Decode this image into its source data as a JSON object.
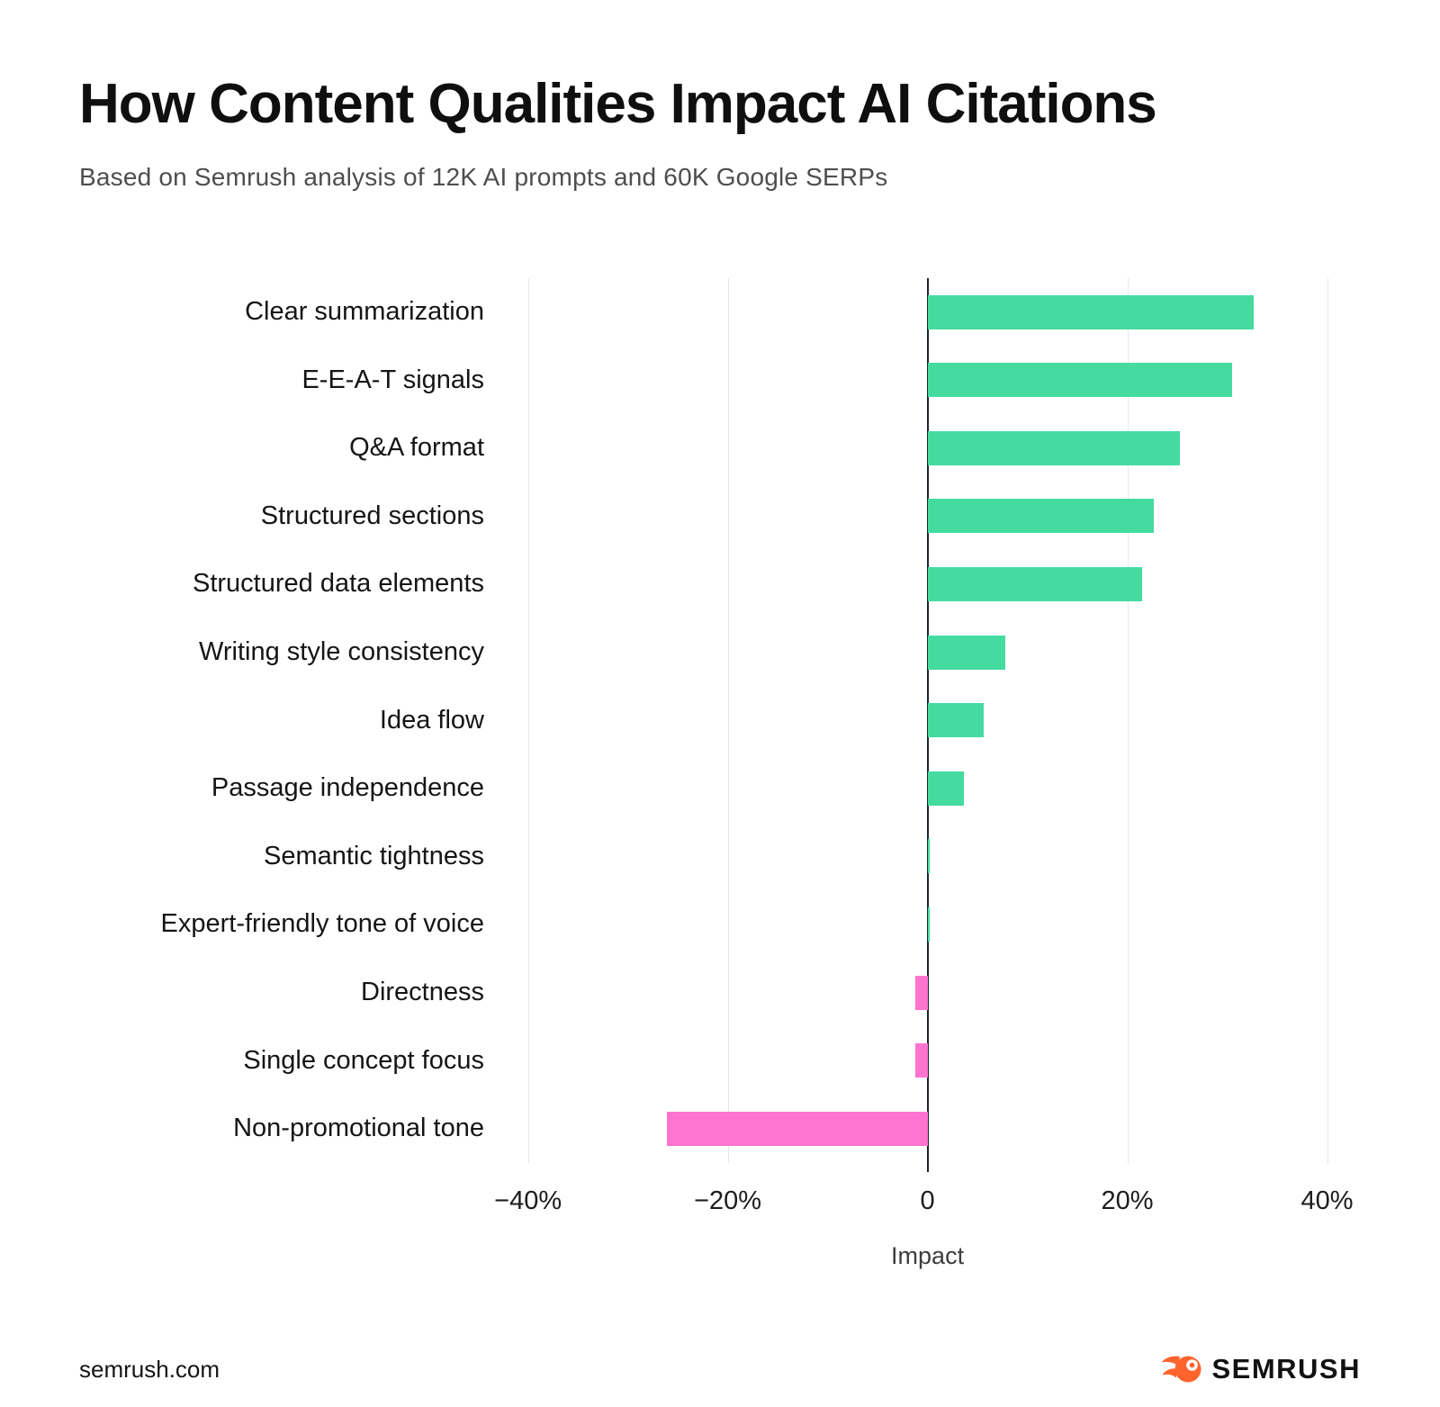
{
  "header": {
    "title": "How Content Qualities Impact AI Citations",
    "subtitle": "Based on Semrush analysis of 12K AI prompts and 60K Google SERPs"
  },
  "chart_data": {
    "type": "bar",
    "orientation": "horizontal",
    "title": "How Content Qualities Impact AI Citations",
    "categories": [
      "Clear summarization",
      "E-E-A-T signals",
      "Q&A format",
      "Structured sections",
      "Structured data elements",
      "Writing style consistency",
      "Idea flow",
      "Passage independence",
      "Semantic tightness",
      "Expert-friendly tone of voice",
      "Directness",
      "Single concept focus",
      "Non-promotional tone"
    ],
    "values": [
      32.7,
      30.5,
      25.3,
      22.7,
      21.5,
      7.8,
      5.6,
      3.6,
      0.2,
      0.2,
      -1.2,
      -1.2,
      -26.1
    ],
    "xlabel": "Impact",
    "x_ticks": [
      {
        "value": -40,
        "label": "−40%"
      },
      {
        "value": -20,
        "label": "−20%"
      },
      {
        "value": 0,
        "label": "0"
      },
      {
        "value": 20,
        "label": "20%"
      },
      {
        "value": 40,
        "label": "40%"
      }
    ],
    "xlim": [
      -43.3,
      45
    ],
    "grid": true,
    "legend": false,
    "positive_color": "#45DBA0",
    "negative_color": "#FF74CE",
    "zero_line_color": "#1B2530",
    "grid_color": "#E7E7EA"
  },
  "footer": {
    "source": "semrush.com",
    "brand": "SEMRUSH",
    "brand_color": "#FF642D"
  }
}
